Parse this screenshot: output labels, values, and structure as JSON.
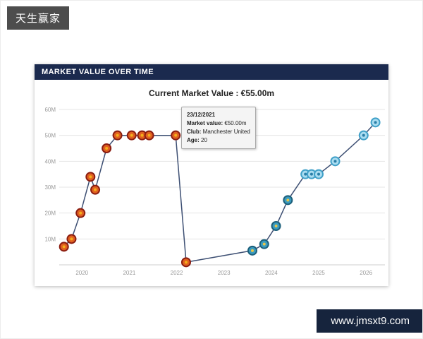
{
  "watermark_top": "天生赢家",
  "watermark_bottom": "www.jmsxt9.com",
  "card": {
    "header": "MARKET VALUE OVER TIME",
    "subtitle": "Current Market Value : €55.00m"
  },
  "tooltip": {
    "date": "23/12/2021",
    "market_value_label": "Market value:",
    "market_value": "€50.00m",
    "club_label": "Club:",
    "club": "Manchester United",
    "age_label": "Age:",
    "age": "20"
  },
  "chart_data": {
    "type": "line",
    "title": "Market Value Over Time",
    "subtitle": "Current Market Value : €55.00m",
    "unit": "€ million",
    "x_range": [
      2019.52,
      2026.4
    ],
    "y_range": [
      0,
      60
    ],
    "y_ticks": [
      10,
      20,
      30,
      40,
      50,
      60
    ],
    "y_tick_labels": [
      "10M",
      "20M",
      "30M",
      "40M",
      "50M",
      "60M"
    ],
    "x_ticks": [
      2020,
      2021,
      2022,
      2023,
      2024,
      2025,
      2026
    ],
    "x_tick_labels": [
      "2020",
      "2021",
      "2022",
      "2023",
      "2024",
      "2025",
      "2026"
    ],
    "grid": "horizontal",
    "legend": "none",
    "line_color": "#3d4f73",
    "clubs": {
      "manchester-united": {
        "ring": "#8a1c10",
        "fill": "#e06020",
        "dot": "#f3b01c"
      },
      "getafe": {
        "ring": "#1c5f7a",
        "fill": "#3a9bbf",
        "dot": "#e8c54a"
      },
      "marseille": {
        "ring": "#3fa0c8",
        "fill": "#aadcf0",
        "dot": "#2a7fa8"
      }
    },
    "points": [
      {
        "x": 2019.62,
        "y": 7,
        "club": "manchester-united"
      },
      {
        "x": 2019.78,
        "y": 10,
        "club": "manchester-united"
      },
      {
        "x": 2019.97,
        "y": 20,
        "club": "manchester-united"
      },
      {
        "x": 2020.18,
        "y": 34,
        "club": "manchester-united"
      },
      {
        "x": 2020.28,
        "y": 29,
        "club": "manchester-united"
      },
      {
        "x": 2020.52,
        "y": 45,
        "club": "manchester-united"
      },
      {
        "x": 2020.75,
        "y": 50,
        "club": "manchester-united"
      },
      {
        "x": 2021.05,
        "y": 50,
        "club": "manchester-united"
      },
      {
        "x": 2021.27,
        "y": 50,
        "club": "manchester-united"
      },
      {
        "x": 2021.42,
        "y": 50,
        "club": "manchester-united"
      },
      {
        "x": 2021.98,
        "y": 50,
        "club": "manchester-united"
      },
      {
        "x": 2022.2,
        "y": 1,
        "club": "manchester-united"
      },
      {
        "x": 2023.6,
        "y": 5.5,
        "club": "getafe"
      },
      {
        "x": 2023.85,
        "y": 8,
        "club": "getafe"
      },
      {
        "x": 2024.1,
        "y": 15,
        "club": "getafe"
      },
      {
        "x": 2024.35,
        "y": 25,
        "club": "getafe"
      },
      {
        "x": 2024.72,
        "y": 35,
        "club": "marseille"
      },
      {
        "x": 2024.85,
        "y": 35,
        "club": "marseille"
      },
      {
        "x": 2025.0,
        "y": 35,
        "club": "marseille"
      },
      {
        "x": 2025.35,
        "y": 40,
        "club": "marseille"
      },
      {
        "x": 2025.95,
        "y": 50,
        "club": "marseille"
      },
      {
        "x": 2026.2,
        "y": 55,
        "club": "marseille"
      }
    ],
    "highlighted_point": {
      "x": 2021.98,
      "y": 50,
      "date": "23/12/2021",
      "club": "Manchester United",
      "age": 20
    }
  }
}
